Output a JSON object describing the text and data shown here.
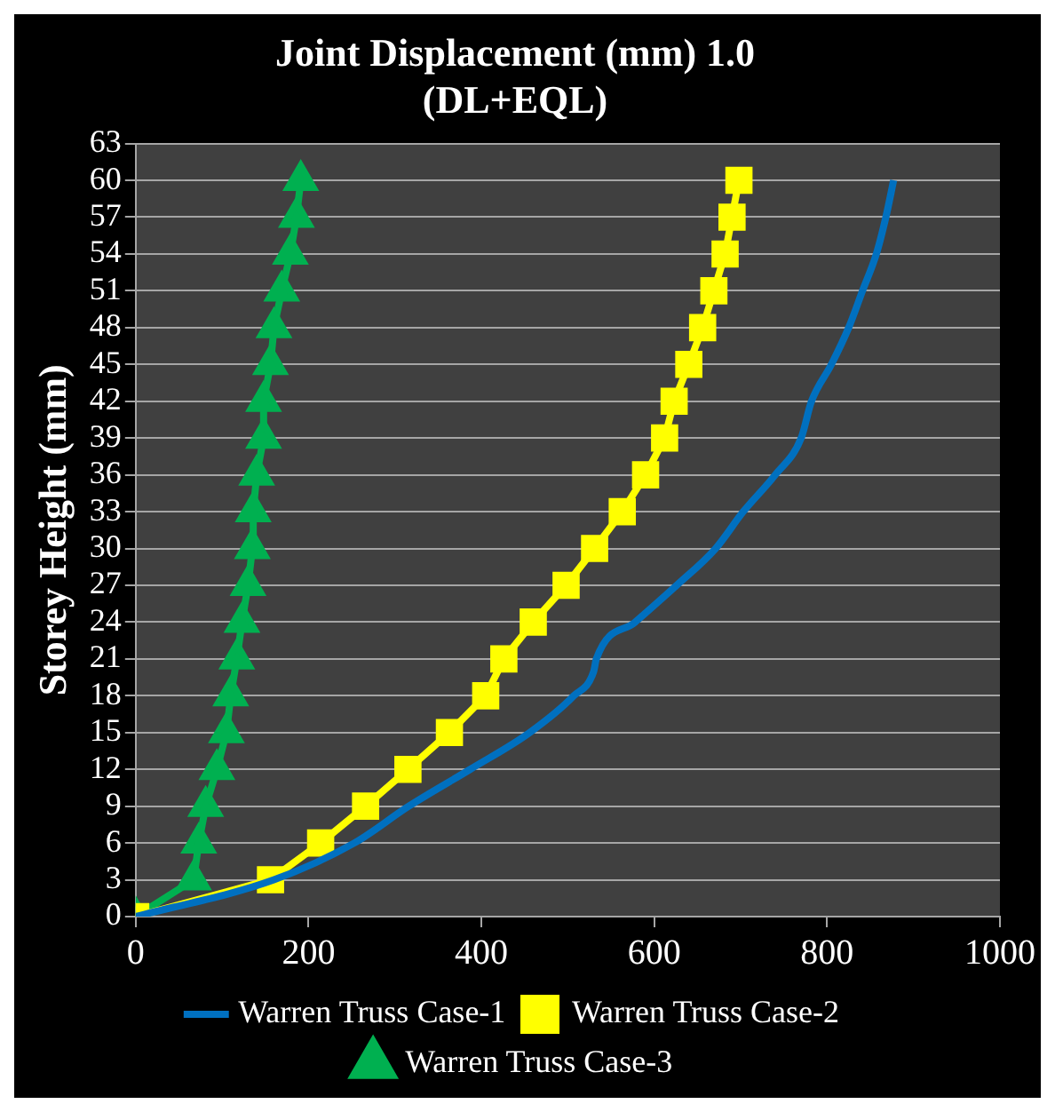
{
  "chart_data": {
    "type": "line",
    "title": "Joint Displacement (mm) 1.0",
    "subtitle": "(DL+EQL)",
    "ylabel": "Storey Height (mm)",
    "xlim": [
      0,
      1000
    ],
    "xticks": [
      0,
      200,
      400,
      600,
      800,
      1000
    ],
    "ylim": [
      0,
      63
    ],
    "yticks": [
      0,
      3,
      6,
      9,
      12,
      15,
      18,
      21,
      24,
      27,
      30,
      33,
      36,
      39,
      42,
      45,
      48,
      51,
      54,
      57,
      60,
      63
    ],
    "grid": "y",
    "legend": "bottom",
    "series": [
      {
        "name": "Warren Truss Case-1",
        "color": "#0070c0",
        "marker": "none",
        "x": [
          0,
          160,
          253,
          316,
          387,
          456,
          507,
          530,
          533,
          578,
          626,
          671,
          703,
          740,
          770,
          782,
          805,
          825,
          841,
          857,
          868,
          877
        ],
        "values": [
          0,
          3,
          6,
          9,
          12,
          15,
          18,
          20,
          21,
          24,
          27,
          30,
          33,
          36,
          39,
          42,
          45,
          48,
          51,
          54,
          57,
          60
        ]
      },
      {
        "name": "Warren Truss Case-2",
        "color": "#ffff00",
        "marker": "square",
        "x": [
          0,
          156,
          214,
          266,
          315,
          363,
          405,
          426,
          460,
          498,
          531,
          563,
          590,
          612,
          623,
          640,
          656,
          669,
          682,
          690,
          698
        ],
        "values": [
          0,
          3,
          6,
          9,
          12,
          15,
          18,
          21,
          24,
          27,
          30,
          33,
          36,
          39,
          42,
          45,
          48,
          51,
          54,
          57,
          60
        ]
      },
      {
        "name": "Warren Truss Case-3",
        "color": "#00b050",
        "marker": "triangle",
        "x": [
          0,
          67,
          73,
          81,
          94,
          105,
          110,
          117,
          123,
          130,
          135,
          136,
          140,
          148,
          148,
          156,
          160,
          169,
          179,
          186,
          191
        ],
        "values": [
          0,
          3,
          6,
          9,
          12,
          15,
          18,
          21,
          24,
          27,
          30,
          33,
          36,
          39,
          42,
          45,
          48,
          51,
          54,
          57,
          60
        ]
      }
    ]
  }
}
